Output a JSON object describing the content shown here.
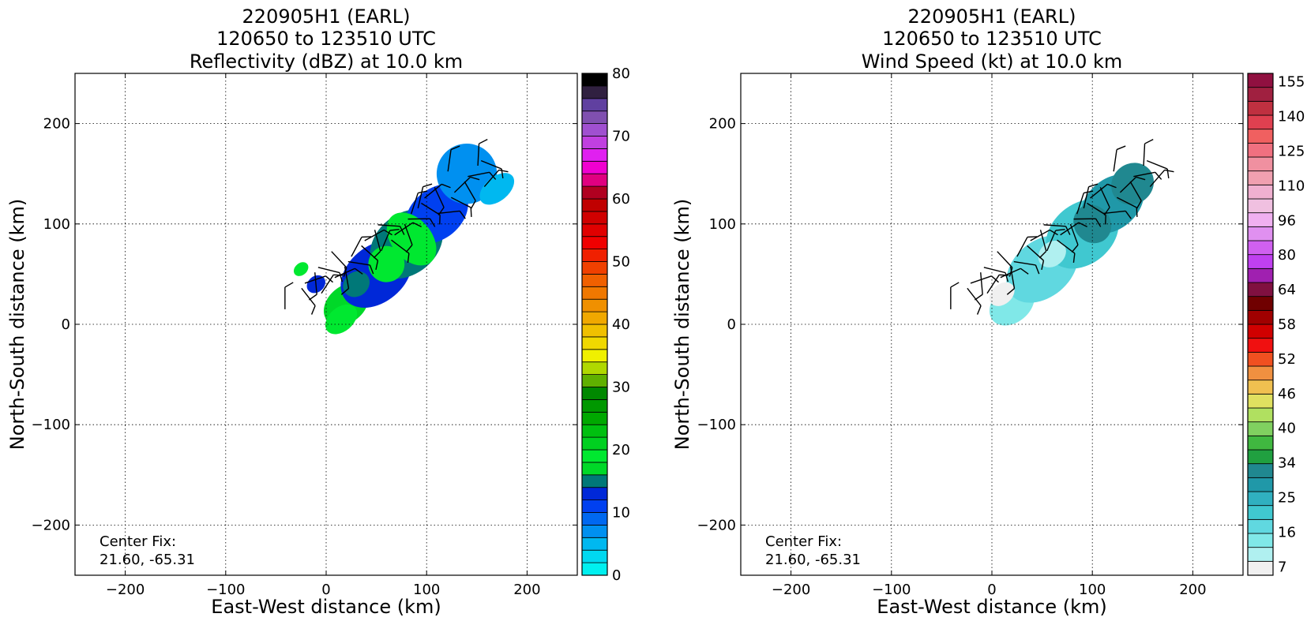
{
  "chart_data": [
    {
      "type": "heatmap",
      "title_lines": [
        "220905H1 (EARL)",
        "120650 to 123510 UTC",
        "Reflectivity (dBZ) at 10.0 km"
      ],
      "xlabel": "East-West distance (km)",
      "ylabel": "North-South distance (km)",
      "xlim": [
        -250,
        250
      ],
      "ylim": [
        -250,
        250
      ],
      "xticks": [
        -200,
        -100,
        0,
        100,
        200
      ],
      "yticks": [
        -200,
        -100,
        0,
        100,
        200
      ],
      "grid": true,
      "annotation_lines": [
        "Center Fix:",
        "21.60, -65.31"
      ],
      "colorbar": {
        "range": [
          0,
          80
        ],
        "ticks": [
          0,
          10,
          20,
          30,
          40,
          50,
          60,
          70,
          80
        ],
        "colors": [
          "#00f0f0",
          "#00d8f0",
          "#00b8f0",
          "#0090f0",
          "#0068f0",
          "#0040f0",
          "#0028d8",
          "#007878",
          "#00d828",
          "#00e830",
          "#00d020",
          "#00c010",
          "#00a800",
          "#009800",
          "#008800",
          "#60b000",
          "#b0d800",
          "#f0f000",
          "#f0d800",
          "#f0c000",
          "#f0a800",
          "#f09000",
          "#f07800",
          "#f06000",
          "#f04000",
          "#f02000",
          "#f00000",
          "#e00000",
          "#d00000",
          "#c00000",
          "#b00020",
          "#e00080",
          "#f000d0",
          "#e020f0",
          "#c040e0",
          "#a050d0",
          "#8050b0",
          "#6040a0",
          "#302040",
          "#000000"
        ]
      },
      "data_description": "Radar reflectivity swath, mostly 10-25 dBZ, oriented SW-NE",
      "cells": [
        {
          "x": 20,
          "y": 20,
          "rx": 25,
          "ry": 18,
          "level": 8
        },
        {
          "x": 50,
          "y": 50,
          "rx": 40,
          "ry": 28,
          "level": 6
        },
        {
          "x": 80,
          "y": 80,
          "rx": 40,
          "ry": 30,
          "level": 7
        },
        {
          "x": 110,
          "y": 110,
          "rx": 35,
          "ry": 25,
          "level": 5
        },
        {
          "x": 140,
          "y": 150,
          "rx": 30,
          "ry": 30,
          "level": 3
        },
        {
          "x": 170,
          "y": 135,
          "rx": 20,
          "ry": 12,
          "level": 2
        },
        {
          "x": 15,
          "y": 5,
          "rx": 18,
          "ry": 12,
          "level": 9
        },
        {
          "x": 85,
          "y": 85,
          "rx": 20,
          "ry": 30,
          "level": 9
        },
        {
          "x": 60,
          "y": 60,
          "rx": 18,
          "ry": 18,
          "level": 9
        },
        {
          "x": 30,
          "y": 40,
          "rx": 14,
          "ry": 12,
          "level": 7
        },
        {
          "x": -25,
          "y": 55,
          "rx": 8,
          "ry": 6,
          "level": 9
        },
        {
          "x": -10,
          "y": 40,
          "rx": 10,
          "ry": 8,
          "level": 6
        }
      ]
    },
    {
      "type": "heatmap",
      "title_lines": [
        "220905H1 (EARL)",
        "120650 to 123510 UTC",
        "Wind Speed (kt) at 10.0 km"
      ],
      "xlabel": "East-West distance (km)",
      "ylabel": "North-South distance (km)",
      "xlim": [
        -250,
        250
      ],
      "ylim": [
        -250,
        250
      ],
      "xticks": [
        -200,
        -100,
        0,
        100,
        200
      ],
      "yticks": [
        -200,
        -100,
        0,
        100,
        200
      ],
      "grid": true,
      "annotation_lines": [
        "Center Fix:",
        "21.60, -65.31"
      ],
      "colorbar": {
        "range": [
          7,
          160
        ],
        "ticklabels": [
          "7",
          "16",
          "25",
          "34",
          "40",
          "46",
          "52",
          "58",
          "64",
          "80",
          "96",
          "110",
          "125",
          "140",
          "155"
        ],
        "colors": [
          "#f0f0f0",
          "#b0f0f0",
          "#80e8e8",
          "#60d8e0",
          "#40c8d0",
          "#30b0c0",
          "#2098a8",
          "#208890",
          "#20a040",
          "#40b840",
          "#80d060",
          "#b0e060",
          "#e0e060",
          "#f0c050",
          "#f09040",
          "#f05020",
          "#f01010",
          "#d00000",
          "#a00000",
          "#700000",
          "#801040",
          "#a020b0",
          "#c040f0",
          "#d060f0",
          "#e090f0",
          "#f0b0f0",
          "#f0c0e0",
          "#f0b0d0",
          "#f0a0b0",
          "#f090a0",
          "#f07080",
          "#f06060",
          "#e04050",
          "#c03040",
          "#a02040",
          "#901040"
        ]
      },
      "data_description": "Wind speed swath, mostly 7-30 kt, oriented SW-NE",
      "cells": [
        {
          "x": 20,
          "y": 20,
          "rx": 25,
          "ry": 18,
          "level": 2
        },
        {
          "x": 50,
          "y": 55,
          "rx": 40,
          "ry": 28,
          "level": 3
        },
        {
          "x": 90,
          "y": 90,
          "rx": 40,
          "ry": 30,
          "level": 4
        },
        {
          "x": 120,
          "y": 120,
          "rx": 35,
          "ry": 25,
          "level": 6
        },
        {
          "x": 140,
          "y": 140,
          "rx": 22,
          "ry": 20,
          "level": 7
        },
        {
          "x": 10,
          "y": 30,
          "rx": 14,
          "ry": 10,
          "level": 0
        },
        {
          "x": 100,
          "y": 100,
          "rx": 18,
          "ry": 20,
          "level": 7
        },
        {
          "x": 60,
          "y": 70,
          "rx": 15,
          "ry": 12,
          "level": 1
        }
      ]
    }
  ]
}
